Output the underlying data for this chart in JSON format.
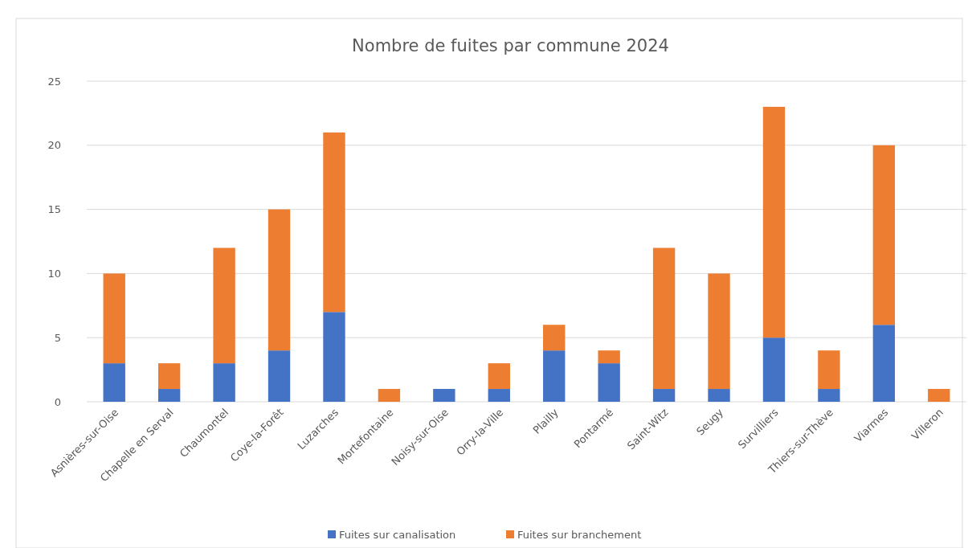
{
  "chart_data": {
    "type": "bar",
    "title": "Nombre de fuites par commune 2024",
    "categories": [
      "Asnières-sur-Oise",
      "Chapelle en Serval",
      "Chaumontel",
      "Coye-la-Forêt",
      "Luzarches",
      "Mortefontaine",
      "Noisy-sur-Oise",
      "Orry-la-Ville",
      "Plailly",
      "Pontarmé",
      "Saint-Witz",
      "Seugy",
      "Survilliers",
      "Thiers-sur-Thève",
      "Viarmes",
      "Villeron"
    ],
    "series": [
      {
        "name": "Fuites sur canalisation",
        "color": "#4472c4",
        "values": [
          3,
          1,
          3,
          4,
          7,
          0,
          1,
          1,
          4,
          3,
          1,
          1,
          5,
          1,
          6,
          0
        ]
      },
      {
        "name": "Fuites sur branchement",
        "color": "#ed7d31",
        "values": [
          7,
          2,
          9,
          11,
          14,
          1,
          0,
          2,
          2,
          1,
          11,
          9,
          18,
          3,
          14,
          1
        ]
      }
    ],
    "stacked": true,
    "ylim": [
      0,
      25
    ],
    "yticks": [
      0,
      5,
      10,
      15,
      20,
      25
    ],
    "grid": "y",
    "legend": "bottom"
  }
}
